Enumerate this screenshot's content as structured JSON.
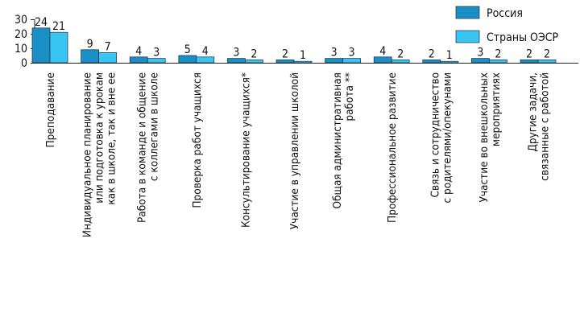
{
  "chart_data": {
    "type": "bar",
    "title": "",
    "xlabel": "",
    "ylabel": "",
    "ylim": [
      0,
      30
    ],
    "yticks": [
      0,
      10,
      20,
      30
    ],
    "grid": false,
    "legend_position": "top-right",
    "categories": [
      [
        "Преподавание"
      ],
      [
        "Индивидуальное планирование",
        "или подготовка к урокам",
        "как в школе, так и вне ее"
      ],
      [
        "Работа в команде и общение",
        "с коллегами в школе"
      ],
      [
        "Проверка работ учащихся"
      ],
      [
        "Консультирование учащихся*"
      ],
      [
        "Участие в управлении школой"
      ],
      [
        "Общая административная",
        "работа **"
      ],
      [
        "Профессиональное развитие"
      ],
      [
        "Связь и сотрудничество",
        "с родителями/опекунами"
      ],
      [
        "Участие во внешкольных",
        "мероприятиях"
      ],
      [
        "Другие задачи,",
        "связанные с работой"
      ]
    ],
    "series": [
      {
        "name": "Россия",
        "color": "#1a8fc6",
        "values": [
          24,
          9,
          4,
          5,
          3,
          2,
          3,
          4,
          2,
          3,
          2
        ]
      },
      {
        "name": "Страны ОЭСР",
        "color": "#39c5f1",
        "values": [
          21,
          7,
          3,
          4,
          2,
          1,
          3,
          2,
          1,
          2,
          2
        ]
      }
    ]
  }
}
